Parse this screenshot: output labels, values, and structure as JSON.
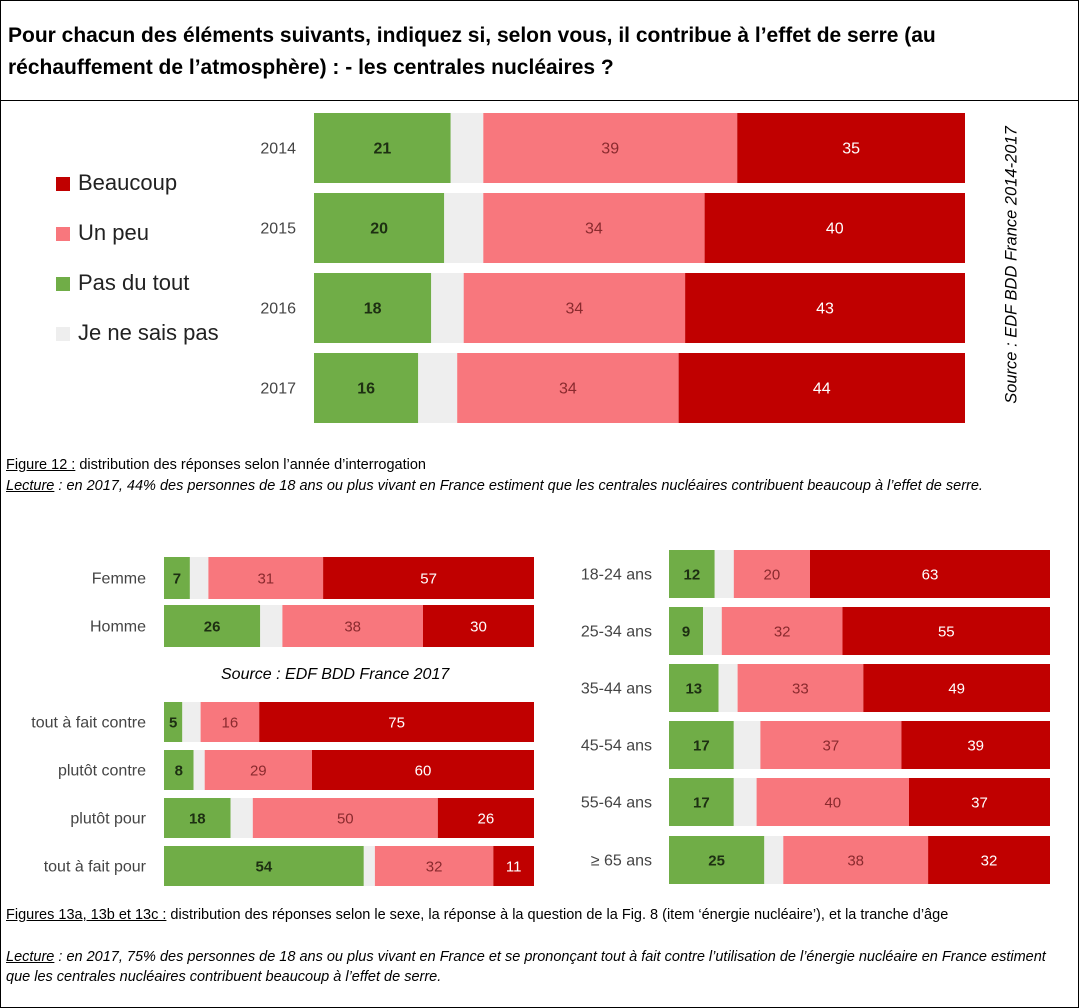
{
  "title": "Pour chacun des éléments suivants, indiquez si, selon vous, il contribue à l’effet de serre (au réchauffement de l’atmosphère) :   - les centrales nucléaires ?",
  "legend": [
    {
      "label": "Beaucoup",
      "color": "#c00000"
    },
    {
      "label": "Un peu",
      "color": "#f8777d"
    },
    {
      "label": "Pas du tout",
      "color": "#70ad47"
    },
    {
      "label": "Je ne sais pas",
      "color": "#eeeeee"
    }
  ],
  "source_main": "Source : EDF BDD France 2014-2017",
  "source_sub": "Source : EDF BDD France 2017",
  "caption12": {
    "figure_ref": "Figure 12 :",
    "figure_text": " distribution des réponses selon l’année d’interrogation",
    "lecture_ref": "Lecture",
    "lecture_text": " : en 2017, 44% des personnes de 18 ans ou plus vivant en France estiment que les centrales nucléaires contribuent beaucoup à l’effet de serre."
  },
  "caption13": {
    "figure_ref": "Figures 13a, 13b et 13c :",
    "figure_text": " distribution des réponses selon le sexe, la réponse à la question de la Fig. 8 (item ‘énergie nucléaire’), et la tranche d’âge",
    "lecture_ref": "Lecture",
    "lecture_text": " : en 2017, 75% des personnes de 18 ans ou plus vivant en France et se prononçant tout à fait contre l’utilisation de l’énergie nucléaire en France estiment que les centrales nucléaires contribuent beaucoup à l’effet de serre."
  },
  "chart_data": [
    {
      "type": "bar",
      "stacked": true,
      "orientation": "horizontal",
      "categories": [
        "2014",
        "2015",
        "2016",
        "2017"
      ],
      "series": [
        {
          "name": "Pas du tout",
          "values": [
            21,
            20,
            18,
            16
          ]
        },
        {
          "name": "Je ne sais pas",
          "values": [
            5,
            6,
            5,
            6
          ]
        },
        {
          "name": "Un peu",
          "values": [
            39,
            34,
            34,
            34
          ]
        },
        {
          "name": "Beaucoup",
          "values": [
            35,
            40,
            43,
            44
          ]
        }
      ]
    },
    {
      "type": "bar",
      "stacked": true,
      "orientation": "horizontal",
      "categories": [
        "Femme",
        "Homme"
      ],
      "series": [
        {
          "name": "Pas du tout",
          "values": [
            7,
            26
          ]
        },
        {
          "name": "Je ne sais pas",
          "values": [
            5,
            6
          ]
        },
        {
          "name": "Un peu",
          "values": [
            31,
            38
          ]
        },
        {
          "name": "Beaucoup",
          "values": [
            57,
            30
          ]
        }
      ]
    },
    {
      "type": "bar",
      "stacked": true,
      "orientation": "horizontal",
      "categories": [
        "tout à fait contre",
        "plutôt contre",
        "plutôt pour",
        "tout à fait pour"
      ],
      "series": [
        {
          "name": "Pas du tout",
          "values": [
            5,
            8,
            18,
            54
          ]
        },
        {
          "name": "Je ne sais pas",
          "values": [
            5,
            3,
            6,
            3
          ]
        },
        {
          "name": "Un peu",
          "values": [
            16,
            29,
            50,
            32
          ]
        },
        {
          "name": "Beaucoup",
          "values": [
            75,
            60,
            26,
            11
          ]
        }
      ]
    },
    {
      "type": "bar",
      "stacked": true,
      "orientation": "horizontal",
      "categories": [
        "18-24 ans",
        "25-34 ans",
        "35-44 ans",
        "45-54 ans",
        "55-64 ans",
        "≥ 65 ans"
      ],
      "series": [
        {
          "name": "Pas du tout",
          "values": [
            12,
            9,
            13,
            17,
            17,
            25
          ]
        },
        {
          "name": "Je ne sais pas",
          "values": [
            5,
            5,
            5,
            7,
            6,
            5
          ]
        },
        {
          "name": "Un peu",
          "values": [
            20,
            32,
            33,
            37,
            40,
            38
          ]
        },
        {
          "name": "Beaucoup",
          "values": [
            63,
            55,
            49,
            39,
            37,
            32
          ]
        }
      ]
    }
  ]
}
